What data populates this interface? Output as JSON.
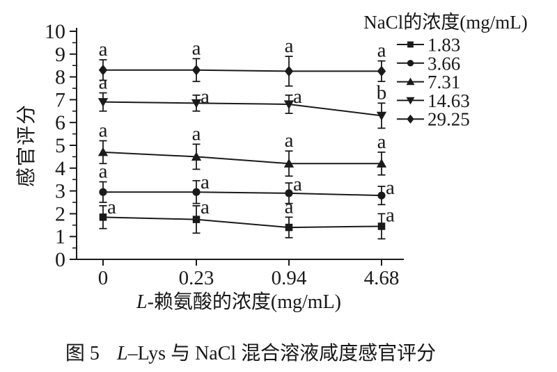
{
  "caption": {
    "prefix": "图 5",
    "italic": "L",
    "rest": "–Lys 与 NaCl 混合溶液咸度感官评分"
  },
  "chart_data": {
    "type": "line",
    "title": "",
    "ylabel": "感官评分",
    "xlabel": {
      "italic": "L",
      "rest": "-赖氨酸的浓度(mg/mL)"
    },
    "x_tick_labels": [
      "0",
      "0.23",
      "0.94",
      "4.68"
    ],
    "y_ticks": [
      0,
      1,
      2,
      3,
      4,
      5,
      6,
      7,
      8,
      9,
      10
    ],
    "ylim": [
      0,
      10
    ],
    "y_minor_step": 0.5,
    "grid": false,
    "legend": {
      "title": "NaCl的浓度(mg/mL)",
      "position": "top-right"
    },
    "series": [
      {
        "name": "1.83",
        "marker": "square",
        "values": [
          1.85,
          1.75,
          1.4,
          1.45
        ],
        "errors": [
          0.5,
          0.6,
          0.45,
          0.55
        ],
        "sig_letters": [
          "a",
          "a",
          "a",
          "a"
        ],
        "letter_pos": [
          "right",
          "right",
          "top",
          "right"
        ]
      },
      {
        "name": "3.66",
        "marker": "circle",
        "values": [
          2.95,
          2.95,
          2.9,
          2.8
        ],
        "errors": [
          0.45,
          0.5,
          0.45,
          0.4
        ],
        "sig_letters": [
          "a",
          "a",
          "a",
          "a"
        ],
        "letter_pos": [
          "top",
          "right",
          "right",
          "right"
        ]
      },
      {
        "name": "7.31",
        "marker": "triangle-up",
        "values": [
          4.7,
          4.5,
          4.2,
          4.2
        ],
        "errors": [
          0.5,
          0.55,
          0.55,
          0.5
        ],
        "sig_letters": [
          "a",
          "a",
          "a",
          "a"
        ],
        "letter_pos": [
          "top",
          "top",
          "top",
          "top"
        ]
      },
      {
        "name": "14.63",
        "marker": "triangle-down",
        "values": [
          6.9,
          6.85,
          6.8,
          6.3
        ],
        "errors": [
          0.4,
          0.35,
          0.4,
          0.55
        ],
        "sig_letters": [
          "a",
          "a",
          "a",
          "b"
        ],
        "letter_pos": [
          "top",
          "right",
          "right",
          "top"
        ]
      },
      {
        "name": "29.25",
        "marker": "diamond",
        "values": [
          8.3,
          8.3,
          8.25,
          8.25
        ],
        "errors": [
          0.45,
          0.5,
          0.65,
          0.45
        ],
        "sig_letters": [
          "a",
          "a",
          "a",
          "a"
        ],
        "letter_pos": [
          "top",
          "top",
          "top",
          "top"
        ]
      }
    ],
    "axis_color": "#1a1a1a",
    "background": "#ffffff"
  }
}
